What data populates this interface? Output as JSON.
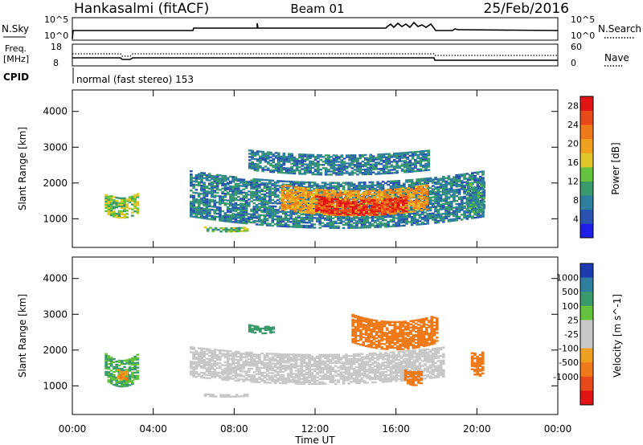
{
  "header": {
    "station": "Hankasalmi (fitACF)",
    "beam": "Beam 01",
    "date": "25/Feb/2016"
  },
  "strip": {
    "nsky_label": "N.Sky",
    "nsearch_label": "N.Search",
    "left_ticks": [
      "10^5",
      "10^0"
    ],
    "right_ticks": [
      "10^5",
      "10^0"
    ],
    "freq_label_line1": "Freq.",
    "freq_label_line2": "[MHz]",
    "freq_ticks": [
      "18",
      "8"
    ],
    "nave_label": "Nave",
    "nave_ticks": [
      "60",
      "0"
    ],
    "cpid_label": "CPID",
    "cpid_text": "normal (fast stereo) 153"
  },
  "colors": {
    "power_scale": [
      "#1e1ee6",
      "#2a52b0",
      "#2f7ea0",
      "#3a9a6e",
      "#66c23c",
      "#e0c62a",
      "#f0a020",
      "#ee7a1a",
      "#e94a1a",
      "#e01414"
    ],
    "velocity_scale": [
      "#e01414",
      "#e94a1a",
      "#ee7a1a",
      "#f0a020",
      "#c8c8c8",
      "#c8c8c8",
      "#66c23c",
      "#3a9a6e",
      "#2f7ea0",
      "#1e3ab0"
    ],
    "ground_scatter": "#c8c8c8"
  },
  "chart_data": [
    {
      "type": "heatmap",
      "title": "Power",
      "xlabel": "Time UT",
      "ylabel": "Slant Range [km]",
      "x_ticks": [
        "00:00",
        "04:00",
        "08:00",
        "12:00",
        "16:00",
        "20:00",
        "00:00"
      ],
      "y_ticks": [
        1000,
        2000,
        3000,
        4000
      ],
      "xlim_hours": [
        0,
        24
      ],
      "ylim_km": [
        200,
        4600
      ],
      "colorbar": {
        "label": "Power [dB]",
        "ticks": [
          4,
          8,
          12,
          16,
          20,
          24,
          28
        ],
        "range": [
          0,
          30
        ]
      },
      "regions": [
        {
          "t0": 1.6,
          "t1": 3.2,
          "r0": 1150,
          "r1": 1700,
          "value": 14
        },
        {
          "t0": 5.8,
          "t1": 20.3,
          "r0": 1050,
          "r1": 2350,
          "value": 8
        },
        {
          "t0": 10.3,
          "t1": 17.5,
          "r0": 1250,
          "r1": 1950,
          "value": 20
        },
        {
          "t0": 12.0,
          "t1": 16.5,
          "r0": 1200,
          "r1": 1650,
          "value": 27
        },
        {
          "t0": 8.7,
          "t1": 17.6,
          "r0": 2350,
          "r1": 2900,
          "value": 8
        },
        {
          "t0": 6.5,
          "t1": 8.6,
          "r0": 650,
          "r1": 750,
          "value": 12
        },
        {
          "t0": 19.5,
          "t1": 20.3,
          "r0": 1300,
          "r1": 2100,
          "value": 9
        }
      ]
    },
    {
      "type": "heatmap",
      "title": "Velocity",
      "xlabel": "Time UT",
      "ylabel": "Slant Range [km]",
      "x_ticks": [
        "00:00",
        "04:00",
        "08:00",
        "12:00",
        "16:00",
        "20:00",
        "00:00"
      ],
      "y_ticks": [
        1000,
        2000,
        3000,
        4000
      ],
      "xlim_hours": [
        0,
        24
      ],
      "ylim_km": [
        200,
        4600
      ],
      "colorbar": {
        "label": "Velocity [m s^-1]",
        "ticks": [
          "1000",
          "500",
          "100",
          "25",
          "-25",
          "-100",
          "-500",
          "-1000"
        ]
      },
      "regions": [
        {
          "t0": 1.6,
          "t1": 3.2,
          "r0": 1150,
          "r1": 1900,
          "value": 100
        },
        {
          "t0": 2.2,
          "t1": 2.7,
          "r0": 1200,
          "r1": 1450,
          "value": -100
        },
        {
          "t0": 5.8,
          "t1": 18.4,
          "r0": 1250,
          "r1": 2100,
          "value": 0
        },
        {
          "t0": 6.5,
          "t1": 8.6,
          "r0": 700,
          "r1": 780,
          "value": 0
        },
        {
          "t0": 8.7,
          "t1": 10.0,
          "r0": 2500,
          "r1": 2700,
          "value": 300
        },
        {
          "t0": 13.8,
          "t1": 18.0,
          "r0": 2200,
          "r1": 3000,
          "value": -300
        },
        {
          "t0": 19.7,
          "t1": 20.3,
          "r0": 1400,
          "r1": 2000,
          "value": -300
        },
        {
          "t0": 16.4,
          "t1": 17.3,
          "r0": 1100,
          "r1": 1500,
          "value": -300
        }
      ]
    }
  ]
}
